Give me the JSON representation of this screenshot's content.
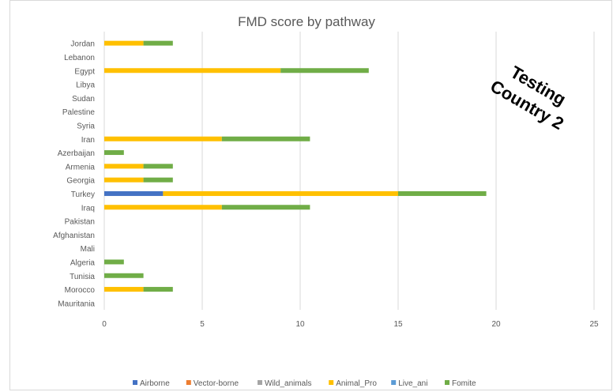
{
  "chart_data": {
    "type": "bar",
    "orientation": "horizontal",
    "stacked": true,
    "title": "FMD score by pathway",
    "categories": [
      "Jordan",
      "Lebanon",
      "Egypt",
      "Libya",
      "Sudan",
      "Palestine",
      "Syria",
      "Iran",
      "Azerbaijan",
      "Armenia",
      "Georgia",
      "Turkey",
      "Iraq",
      "Pakistan",
      "Afghanistan",
      "Mali",
      "Algeria",
      "Tunisia",
      "Morocco",
      "Mauritania"
    ],
    "series": [
      {
        "name": "Airborne",
        "color": "#4472c4",
        "values": [
          0,
          0,
          0,
          0,
          0,
          0,
          0,
          0,
          0,
          0,
          0,
          3,
          0,
          0,
          0,
          0,
          0,
          0,
          0,
          0
        ]
      },
      {
        "name": "Vector-borne",
        "color": "#ed7d31",
        "values": [
          0,
          0,
          0,
          0,
          0,
          0,
          0,
          0,
          0,
          0,
          0,
          0,
          0,
          0,
          0,
          0,
          0,
          0,
          0,
          0
        ]
      },
      {
        "name": "Wild_animals",
        "color": "#a5a5a5",
        "values": [
          0,
          0,
          0,
          0,
          0,
          0,
          0,
          0,
          0,
          0,
          0,
          0,
          0,
          0,
          0,
          0,
          0,
          0,
          0,
          0
        ]
      },
      {
        "name": "Animal_Pro",
        "color": "#ffc000",
        "values": [
          2,
          0,
          9,
          0,
          0,
          0,
          0,
          6,
          0,
          2,
          2,
          12,
          6,
          0,
          0,
          0,
          0,
          0,
          2,
          0
        ]
      },
      {
        "name": "Live_ani",
        "color": "#5b9bd5",
        "values": [
          0,
          0,
          0,
          0,
          0,
          0,
          0,
          0,
          0,
          0,
          0,
          0,
          0,
          0,
          0,
          0,
          0,
          0,
          0,
          0
        ]
      },
      {
        "name": "Fomite",
        "color": "#70ad47",
        "values": [
          1.5,
          0,
          4.5,
          0,
          0,
          0,
          0,
          4.5,
          1,
          1.5,
          1.5,
          4.5,
          4.5,
          0,
          0,
          0,
          1,
          2,
          1.5,
          0
        ]
      }
    ],
    "xlim": [
      0,
      25
    ],
    "xticks": [
      "0",
      "5",
      "10",
      "15",
      "20",
      "25"
    ],
    "grid": "vertical",
    "legend": "bottom"
  },
  "stamp": {
    "line1": "Testing",
    "line2": "Country 2"
  }
}
